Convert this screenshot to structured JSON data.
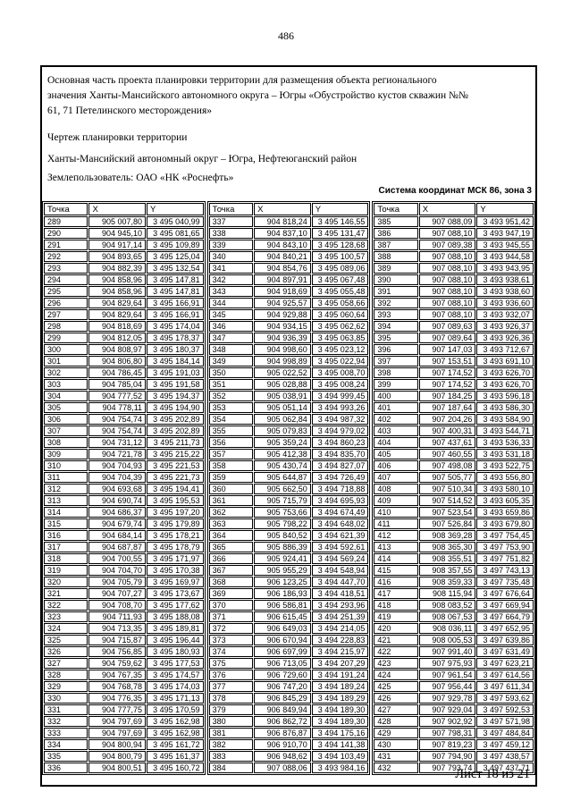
{
  "page": {
    "number": "486",
    "sheet_label": "Лист 18 из 21"
  },
  "document": {
    "title_lines": [
      "Основная часть проекта планировки территории для размещения объекта регионального",
      "значения Ханты-Мансийского автономного округа – Югры «Обустройство кустов скважин №№",
      "61, 71 Петелинского месторождения»"
    ],
    "drawing_label": "Чертеж планировки территории",
    "region": "Ханты-Мансийский автономный округ – Югра, Нефтеюганский район",
    "land_user": "Землепользователь: ОАО «НК «Роснефть»",
    "coordinate_system": "Система координат МСК 86, зона 3"
  },
  "table": {
    "headers": [
      "Точка",
      "X",
      "Y"
    ],
    "groups": [
      {
        "rows": [
          [
            "289",
            "905 007,80",
            "3 495 040,99"
          ],
          [
            "290",
            "904 945,10",
            "3 495 081,65"
          ],
          [
            "291",
            "904 917,14",
            "3 495 109,89"
          ],
          [
            "292",
            "904 893,65",
            "3 495 125,04"
          ],
          [
            "293",
            "904 882,39",
            "3 495 132,54"
          ],
          [
            "294",
            "904 858,96",
            "3 495 147,81"
          ],
          [
            "295",
            "904 858,96",
            "3 495 147,81"
          ],
          [
            "296",
            "904 829,64",
            "3 495 166,91"
          ],
          [
            "297",
            "904 829,64",
            "3 495 166,91"
          ],
          [
            "298",
            "904 818,69",
            "3 495 174,04"
          ],
          [
            "299",
            "904 812,05",
            "3 495 178,37"
          ],
          [
            "300",
            "904 808,97",
            "3 495 180,37"
          ],
          [
            "301",
            "904 806,80",
            "3 495 184,14"
          ],
          [
            "302",
            "904 786,45",
            "3 495 191,03"
          ],
          [
            "303",
            "904 785,04",
            "3 495 191,58"
          ],
          [
            "304",
            "904 777,52",
            "3 495 194,37"
          ],
          [
            "305",
            "904 778,11",
            "3 495 194,90"
          ],
          [
            "306",
            "904 754,74",
            "3 495 202,89"
          ],
          [
            "307",
            "904 754,74",
            "3 495 202,89"
          ],
          [
            "308",
            "904 731,12",
            "3 495 211,73"
          ],
          [
            "309",
            "904 721,78",
            "3 495 215,22"
          ],
          [
            "310",
            "904 704,93",
            "3 495 221,53"
          ],
          [
            "311",
            "904 704,39",
            "3 495 221,73"
          ],
          [
            "312",
            "904 693,68",
            "3 495 194,41"
          ],
          [
            "313",
            "904 690,74",
            "3 495 195,53"
          ],
          [
            "314",
            "904 686,37",
            "3 495 197,20"
          ],
          [
            "315",
            "904 679,74",
            "3 495 179,89"
          ],
          [
            "316",
            "904 684,14",
            "3 495 178,21"
          ],
          [
            "317",
            "904 687,87",
            "3 495 178,79"
          ],
          [
            "318",
            "904 700,55",
            "3 495 171,97"
          ],
          [
            "319",
            "904 704,70",
            "3 495 170,38"
          ],
          [
            "320",
            "904 705,79",
            "3 495 169,97"
          ],
          [
            "321",
            "904 707,27",
            "3 495 173,67"
          ],
          [
            "322",
            "904 708,70",
            "3 495 177,62"
          ],
          [
            "323",
            "904 711,93",
            "3 495 188,08"
          ],
          [
            "324",
            "904 713,35",
            "3 495 189,81"
          ],
          [
            "325",
            "904 715,87",
            "3 495 196,44"
          ],
          [
            "326",
            "904 756,85",
            "3 495 180,93"
          ],
          [
            "327",
            "904 759,62",
            "3 495 177,53"
          ],
          [
            "328",
            "904 767,35",
            "3 495 174,57"
          ],
          [
            "329",
            "904 768,78",
            "3 495 174,03"
          ],
          [
            "330",
            "904 776,35",
            "3 495 171,13"
          ],
          [
            "331",
            "904 777,75",
            "3 495 170,59"
          ],
          [
            "332",
            "904 797,69",
            "3 495 162,98"
          ],
          [
            "333",
            "904 797,69",
            "3 495 162,98"
          ],
          [
            "334",
            "904 800,94",
            "3 495 161,72"
          ],
          [
            "335",
            "904 800,79",
            "3 495 161,37"
          ],
          [
            "336",
            "904 800,51",
            "3 495 160,72"
          ]
        ]
      },
      {
        "rows": [
          [
            "337",
            "904 818,24",
            "3 495 146,55"
          ],
          [
            "338",
            "904 837,10",
            "3 495 131,47"
          ],
          [
            "339",
            "904 843,10",
            "3 495 128,68"
          ],
          [
            "340",
            "904 840,21",
            "3 495 100,57"
          ],
          [
            "341",
            "904 854,76",
            "3 495 089,06"
          ],
          [
            "342",
            "904 897,91",
            "3 495 067,48"
          ],
          [
            "343",
            "904 918,69",
            "3 495 055,48"
          ],
          [
            "344",
            "904 925,57",
            "3 495 058,66"
          ],
          [
            "345",
            "904 929,88",
            "3 495 060,64"
          ],
          [
            "346",
            "904 934,15",
            "3 495 062,62"
          ],
          [
            "347",
            "904 936,39",
            "3 495 063,85"
          ],
          [
            "348",
            "904 998,60",
            "3 495 023,12"
          ],
          [
            "349",
            "904 998,89",
            "3 495 022,94"
          ],
          [
            "350",
            "905 022,52",
            "3 495 008,70"
          ],
          [
            "351",
            "905 028,88",
            "3 495 008,24"
          ],
          [
            "352",
            "905 038,91",
            "3 494 999,45"
          ],
          [
            "353",
            "905 051,14",
            "3 494 993,26"
          ],
          [
            "354",
            "905 062,84",
            "3 494 987,32"
          ],
          [
            "355",
            "905 079,83",
            "3 494 979,02"
          ],
          [
            "356",
            "905 359,24",
            "3 494 860,23"
          ],
          [
            "357",
            "905 412,38",
            "3 494 835,70"
          ],
          [
            "358",
            "905 430,74",
            "3 494 827,07"
          ],
          [
            "359",
            "905 644,87",
            "3 494 726,49"
          ],
          [
            "360",
            "905 662,50",
            "3 494 718,88"
          ],
          [
            "361",
            "905 715,79",
            "3 494 695,93"
          ],
          [
            "362",
            "905 753,66",
            "3 494 674,49"
          ],
          [
            "363",
            "905 798,22",
            "3 494 648,02"
          ],
          [
            "364",
            "905 840,52",
            "3 494 621,39"
          ],
          [
            "365",
            "905 886,39",
            "3 494 592,61"
          ],
          [
            "366",
            "905 924,41",
            "3 494 569,24"
          ],
          [
            "367",
            "905 955,29",
            "3 494 548,94"
          ],
          [
            "368",
            "906 123,25",
            "3 494 447,70"
          ],
          [
            "369",
            "906 186,93",
            "3 494 418,51"
          ],
          [
            "370",
            "906 586,81",
            "3 494 293,96"
          ],
          [
            "371",
            "906 615,45",
            "3 494 251,39"
          ],
          [
            "372",
            "906 649,03",
            "3 494 214,05"
          ],
          [
            "373",
            "906 670,94",
            "3 494 228,83"
          ],
          [
            "374",
            "906 697,99",
            "3 494 215,97"
          ],
          [
            "375",
            "906 713,05",
            "3 494 207,29"
          ],
          [
            "376",
            "906 729,60",
            "3 494 191,24"
          ],
          [
            "377",
            "906 747,20",
            "3 494 189,24"
          ],
          [
            "378",
            "906 845,29",
            "3 494 189,29"
          ],
          [
            "379",
            "906 849,94",
            "3 494 189,30"
          ],
          [
            "380",
            "906 862,72",
            "3 494 189,30"
          ],
          [
            "381",
            "906 876,87",
            "3 494 175,16"
          ],
          [
            "382",
            "906 910,70",
            "3 494 141,38"
          ],
          [
            "383",
            "906 948,62",
            "3 494 103,49"
          ],
          [
            "384",
            "907 088,06",
            "3 493 984,16"
          ]
        ]
      },
      {
        "rows": [
          [
            "385",
            "907 088,09",
            "3 493 951,42"
          ],
          [
            "386",
            "907 088,10",
            "3 493 947,19"
          ],
          [
            "387",
            "907 089,38",
            "3 493 945,55"
          ],
          [
            "388",
            "907 088,10",
            "3 493 944,58"
          ],
          [
            "389",
            "907 088,10",
            "3 493 943,95"
          ],
          [
            "390",
            "907 088,10",
            "3 493 938,61"
          ],
          [
            "391",
            "907 088,10",
            "3 493 938,60"
          ],
          [
            "392",
            "907 088,10",
            "3 493 936,60"
          ],
          [
            "393",
            "907 088,10",
            "3 493 932,07"
          ],
          [
            "394",
            "907 089,63",
            "3 493 926,37"
          ],
          [
            "395",
            "907 089,64",
            "3 493 926,36"
          ],
          [
            "396",
            "907 147,03",
            "3 493 712,67"
          ],
          [
            "397",
            "907 153,51",
            "3 493 691,10"
          ],
          [
            "398",
            "907 174,52",
            "3 493 626,70"
          ],
          [
            "399",
            "907 174,52",
            "3 493 626,70"
          ],
          [
            "400",
            "907 184,25",
            "3 493 596,18"
          ],
          [
            "401",
            "907 187,64",
            "3 493 586,30"
          ],
          [
            "402",
            "907 204,26",
            "3 493 584,90"
          ],
          [
            "403",
            "907 400,31",
            "3 493 544,71"
          ],
          [
            "404",
            "907 437,61",
            "3 493 536,33"
          ],
          [
            "405",
            "907 460,55",
            "3 493 531,18"
          ],
          [
            "406",
            "907 498,08",
            "3 493 522,75"
          ],
          [
            "407",
            "907 505,77",
            "3 493 556,80"
          ],
          [
            "408",
            "907 510,34",
            "3 493 580,10"
          ],
          [
            "409",
            "907 514,52",
            "3 493 605,35"
          ],
          [
            "410",
            "907 523,54",
            "3 493 659,86"
          ],
          [
            "411",
            "907 526,84",
            "3 493 679,80"
          ],
          [
            "412",
            "908 369,28",
            "3 497 754,45"
          ],
          [
            "413",
            "908 365,30",
            "3 497 753,90"
          ],
          [
            "414",
            "908 355,51",
            "3 497 751,82"
          ],
          [
            "415",
            "908 357,55",
            "3 497 743,13"
          ],
          [
            "416",
            "908 359,33",
            "3 497 735,48"
          ],
          [
            "417",
            "908 115,94",
            "3 497 676,64"
          ],
          [
            "418",
            "908 083,52",
            "3 497 669,94"
          ],
          [
            "419",
            "908 067,53",
            "3 497 664,79"
          ],
          [
            "420",
            "908 036,11",
            "3 497 652,95"
          ],
          [
            "421",
            "908 005,53",
            "3 497 639,86"
          ],
          [
            "422",
            "907 991,40",
            "3 497 631,49"
          ],
          [
            "423",
            "907 975,93",
            "3 497 623,21"
          ],
          [
            "424",
            "907 961,54",
            "3 497 614,56"
          ],
          [
            "425",
            "907 956,44",
            "3 497 611,34"
          ],
          [
            "426",
            "907 929,78",
            "3 497 593,62"
          ],
          [
            "427",
            "907 929,04",
            "3 497 592,53"
          ],
          [
            "428",
            "907 902,92",
            "3 497 571,98"
          ],
          [
            "429",
            "907 798,31",
            "3 497 484,84"
          ],
          [
            "430",
            "907 819,23",
            "3 497 459,12"
          ],
          [
            "431",
            "907 794,90",
            "3 497 438,57"
          ],
          [
            "432",
            "907 793,74",
            "3 497 437,71"
          ]
        ]
      }
    ]
  }
}
